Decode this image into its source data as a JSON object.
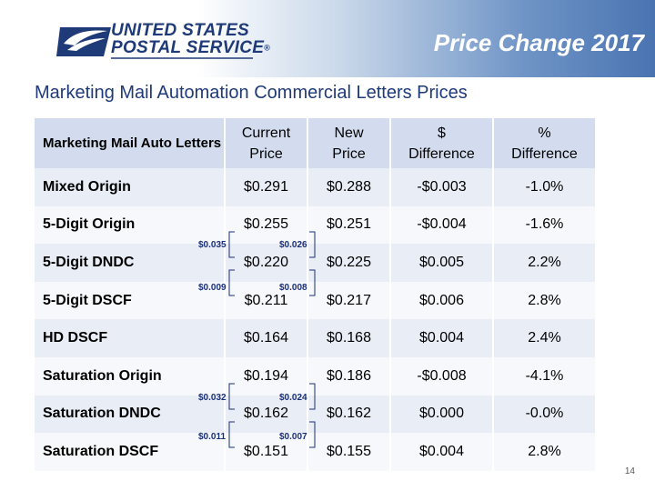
{
  "header": {
    "logo_line1": "UNITED STATES",
    "logo_line2": "POSTAL SERVICE",
    "logo_reg": "®",
    "title": "Price Change 2017"
  },
  "subtitle": "Marketing Mail Automation Commercial Letters Prices",
  "table": {
    "headers": {
      "col0": "Marketing Mail Auto Letters",
      "col1_l1": "Current",
      "col1_l2": "Price",
      "col2_l1": "New",
      "col2_l2": "Price",
      "col3_l1": "$",
      "col3_l2": "Difference",
      "col4_l1": "%",
      "col4_l2": "Difference"
    },
    "rows": [
      {
        "label": "Mixed Origin",
        "current": "$0.291",
        "new": "$0.288",
        "diff": "-$0.003",
        "pct": "-1.0%"
      },
      {
        "label": "5-Digit Origin",
        "current": "$0.255",
        "new": "$0.251",
        "diff": "-$0.004",
        "pct": "-1.6%"
      },
      {
        "label": "5-Digit DNDC",
        "current": "$0.220",
        "new": "$0.225",
        "diff": "$0.005",
        "pct": "2.2%"
      },
      {
        "label": "5-Digit DSCF",
        "current": "$0.211",
        "new": "$0.217",
        "diff": "$0.006",
        "pct": "2.8%"
      },
      {
        "label": "HD DSCF",
        "current": "$0.164",
        "new": "$0.168",
        "diff": "$0.004",
        "pct": "2.4%"
      },
      {
        "label": "Saturation Origin",
        "current": "$0.194",
        "new": "$0.186",
        "diff": "-$0.008",
        "pct": "-4.1%"
      },
      {
        "label": "Saturation DNDC",
        "current": "$0.162",
        "new": "$0.162",
        "diff": "$0.000",
        "pct": "-0.0%"
      },
      {
        "label": "Saturation DSCF",
        "current": "$0.151",
        "new": "$0.155",
        "diff": "$0.004",
        "pct": "2.8%"
      }
    ]
  },
  "annotations": {
    "a1_current": "$0.035",
    "a1_new": "$0.026",
    "a2_current": "$0.009",
    "a2_new": "$0.008",
    "a3_current": "$0.032",
    "a3_new": "$0.024",
    "a4_current": "$0.011",
    "a4_new": "$0.007"
  },
  "colors": {
    "header_blue": "#4a74b1",
    "logo_navy": "#1f3a78",
    "table_header": "#d3dcee",
    "row_even": "#e9edf6",
    "row_odd": "#f7f8fb"
  },
  "page_number": "14"
}
